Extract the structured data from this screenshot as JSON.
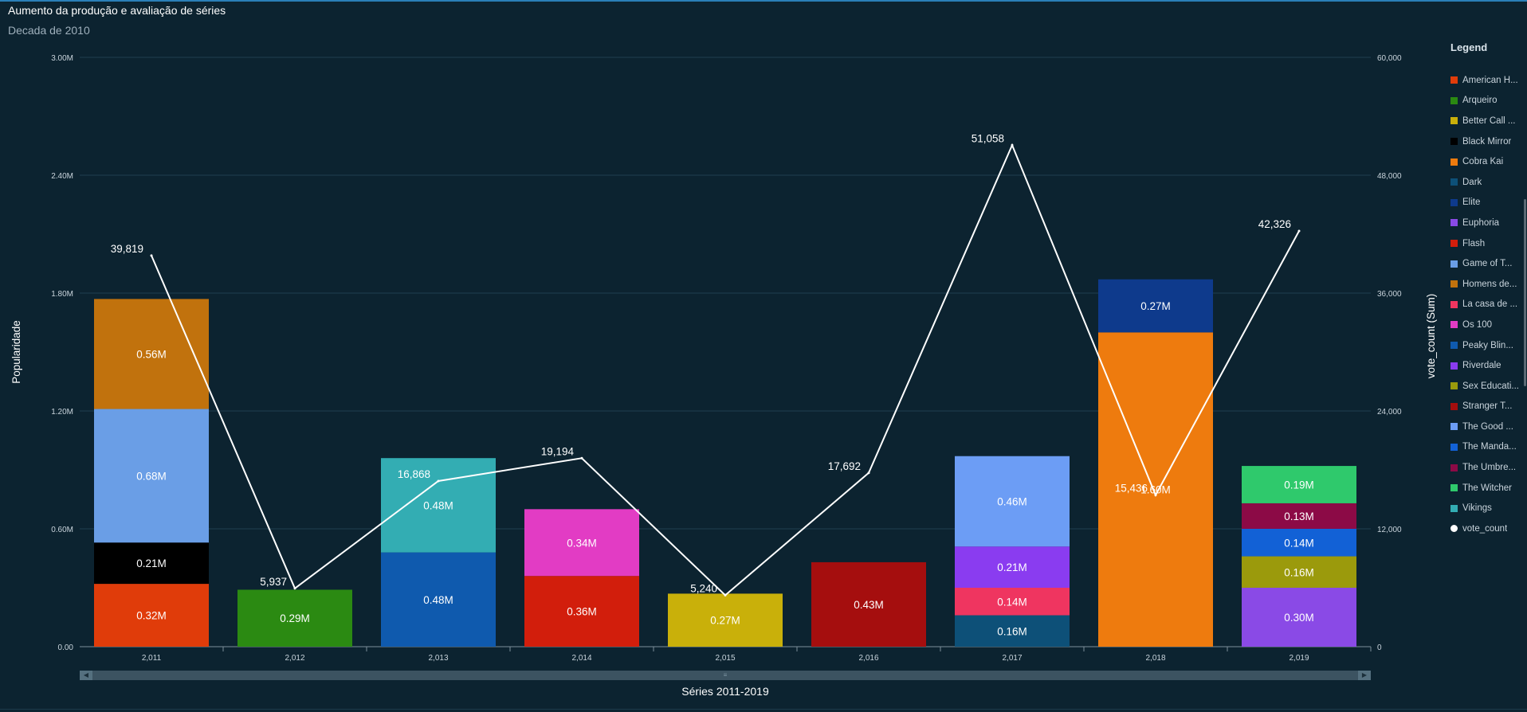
{
  "header": {
    "title": "Aumento da produção e avaliação de séries",
    "subtitle": "Decada de 2010"
  },
  "legend": {
    "title": "Legend",
    "items": [
      {
        "label": "American H...",
        "color": "#e03c0a"
      },
      {
        "label": "Arqueiro",
        "color": "#2b8a12"
      },
      {
        "label": "Better Call ...",
        "color": "#c9b00a"
      },
      {
        "label": "Black Mirror",
        "color": "#000000"
      },
      {
        "label": "Cobra Kai",
        "color": "#ee7b0e"
      },
      {
        "label": "Dark",
        "color": "#0d5078"
      },
      {
        "label": "Elite",
        "color": "#0e3a8c"
      },
      {
        "label": "Euphoria",
        "color": "#8a4ae6"
      },
      {
        "label": "Flash",
        "color": "#d21e0c"
      },
      {
        "label": "Game of T...",
        "color": "#6a9ee6"
      },
      {
        "label": "Homens de...",
        "color": "#c1720d"
      },
      {
        "label": "La casa de ...",
        "color": "#ef3560"
      },
      {
        "label": "Os 100",
        "color": "#e23cc4"
      },
      {
        "label": "Peaky Blin...",
        "color": "#0f5aae"
      },
      {
        "label": "Riverdale",
        "color": "#8a3cf0"
      },
      {
        "label": "Sex Educati...",
        "color": "#9b9a0c"
      },
      {
        "label": "Stranger T...",
        "color": "#a50e0e"
      },
      {
        "label": "The Good ...",
        "color": "#6c9df5"
      },
      {
        "label": "The Manda...",
        "color": "#1261d6"
      },
      {
        "label": "The Umbre...",
        "color": "#8c0a46"
      },
      {
        "label": "The Witcher",
        "color": "#2fc96c"
      },
      {
        "label": "Vikings",
        "color": "#33adb3"
      },
      {
        "label": "vote_count",
        "color": "#ffffff",
        "shape": "circle"
      }
    ]
  },
  "chart_data": {
    "type": "bar",
    "stacked": true,
    "combo_line": true,
    "title": "Aumento da produção e avaliação de séries",
    "subtitle": "Decada de 2010",
    "xlabel": "Séries 2011-2019",
    "ylabel": "Popularidade",
    "y2label": "vote_count (Sum)",
    "ylim": [
      0,
      3000000
    ],
    "y2lim": [
      0,
      60000
    ],
    "yticks": [
      "0.00",
      "0.60M",
      "1.20M",
      "1.80M",
      "2.40M",
      "3.00M"
    ],
    "y2ticks": [
      "0",
      "12,000",
      "24,000",
      "36,000",
      "48,000",
      "60,000"
    ],
    "categories": [
      "2,011",
      "2,012",
      "2,013",
      "2,014",
      "2,015",
      "2,016",
      "2,017",
      "2,018",
      "2,019"
    ],
    "grid": true,
    "legend_position": "right",
    "stacks": [
      [
        {
          "series": "American H...",
          "value": 320000,
          "label": "0.32M",
          "color": "#e03c0a"
        },
        {
          "series": "Black Mirror",
          "value": 210000,
          "label": "0.21M",
          "color": "#000000"
        },
        {
          "series": "Game of T...",
          "value": 680000,
          "label": "0.68M",
          "color": "#6a9ee6"
        },
        {
          "series": "Homens de...",
          "value": 560000,
          "label": "0.56M",
          "color": "#c1720d"
        }
      ],
      [
        {
          "series": "Arqueiro",
          "value": 290000,
          "label": "0.29M",
          "color": "#2b8a12"
        }
      ],
      [
        {
          "series": "Peaky Blin...",
          "value": 480000,
          "label": "0.48M",
          "color": "#0f5aae"
        },
        {
          "series": "Vikings",
          "value": 480000,
          "label": "0.48M",
          "color": "#33adb3"
        }
      ],
      [
        {
          "series": "Flash",
          "value": 360000,
          "label": "0.36M",
          "color": "#d21e0c"
        },
        {
          "series": "Os 100",
          "value": 340000,
          "label": "0.34M",
          "color": "#e23cc4"
        }
      ],
      [
        {
          "series": "Better Call ...",
          "value": 270000,
          "label": "0.27M",
          "color": "#c9b00a"
        }
      ],
      [
        {
          "series": "Stranger T...",
          "value": 430000,
          "label": "0.43M",
          "color": "#a50e0e"
        }
      ],
      [
        {
          "series": "Dark",
          "value": 160000,
          "label": "0.16M",
          "color": "#0d5078"
        },
        {
          "series": "La casa de ...",
          "value": 140000,
          "label": "0.14M",
          "color": "#ef3560"
        },
        {
          "series": "Riverdale",
          "value": 210000,
          "label": "0.21M",
          "color": "#8a3cf0"
        },
        {
          "series": "The Good ...",
          "value": 460000,
          "label": "0.46M",
          "color": "#6c9df5"
        }
      ],
      [
        {
          "series": "Cobra Kai",
          "value": 1600000,
          "label": "1.60M",
          "color": "#ee7b0e"
        },
        {
          "series": "Elite",
          "value": 270000,
          "label": "0.27M",
          "color": "#0e3a8c"
        }
      ],
      [
        {
          "series": "Euphoria",
          "value": 300000,
          "label": "0.30M",
          "color": "#8a4ae6"
        },
        {
          "series": "Sex Educati...",
          "value": 160000,
          "label": "0.16M",
          "color": "#9b9a0c"
        },
        {
          "series": "The Manda...",
          "value": 140000,
          "label": "0.14M",
          "color": "#1261d6"
        },
        {
          "series": "The Umbre...",
          "value": 130000,
          "label": "0.13M",
          "color": "#8c0a46"
        },
        {
          "series": "The Witcher",
          "value": 190000,
          "label": "0.19M",
          "color": "#2fc96c"
        }
      ]
    ],
    "line": {
      "name": "vote_count",
      "color": "#ffffff",
      "values": [
        39819,
        5937,
        16868,
        19194,
        5240,
        17692,
        51058,
        15436,
        42326
      ],
      "labels": [
        "39,819",
        "5,937",
        "16,868",
        "19,194",
        "5,240",
        "17,692",
        "51,058",
        "15,436",
        "42,326"
      ]
    }
  }
}
